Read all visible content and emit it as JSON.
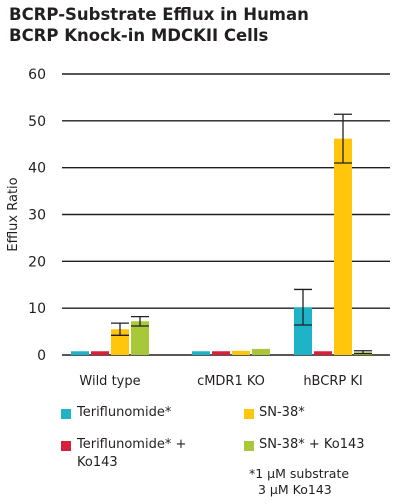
{
  "chart_data": {
    "type": "bar",
    "title_lines": [
      "BCRP-Substrate Efflux in Human",
      "BCRP Knock-in MDCKII Cells"
    ],
    "ylabel": "Efflux Ratio",
    "xlabel": "",
    "ylim": [
      0,
      60
    ],
    "yticks": [
      0,
      10,
      20,
      30,
      40,
      50,
      60
    ],
    "grid": true,
    "categories": [
      "Wild type",
      "cMDR1 KO",
      "hBCRP KI"
    ],
    "series": [
      {
        "name": "Teriflunomide*",
        "color": "#1fb3c8",
        "values": [
          0.8,
          0.8,
          10.2
        ],
        "errors": [
          0,
          0,
          3.8
        ]
      },
      {
        "name": "Teriflunomide* + Ko143",
        "color": "#d9203a",
        "values": [
          0.8,
          0.8,
          0.8
        ],
        "errors": [
          0,
          0,
          0
        ]
      },
      {
        "name": "SN-38*",
        "color": "#ffc60b",
        "values": [
          5.5,
          0.9,
          46.2
        ],
        "errors": [
          1.3,
          0,
          5.2
        ]
      },
      {
        "name": "SN-38* + Ko143",
        "color": "#a8c83a",
        "values": [
          7.2,
          1.3,
          0.6
        ],
        "errors": [
          1.0,
          0,
          0.3
        ]
      }
    ],
    "legend_position": "bottom"
  },
  "legend": [
    {
      "label": "Teriflunomide*",
      "color": "#1fb3c8"
    },
    {
      "label": "SN-38*",
      "color": "#ffc60b"
    },
    {
      "label": "Teriflunomide* + Ko143",
      "color": "#d9203a"
    },
    {
      "label": "SN-38* + Ko143",
      "color": "#a8c83a"
    }
  ],
  "footnote": [
    "*1 µM substrate",
    "3 µM Ko143"
  ]
}
